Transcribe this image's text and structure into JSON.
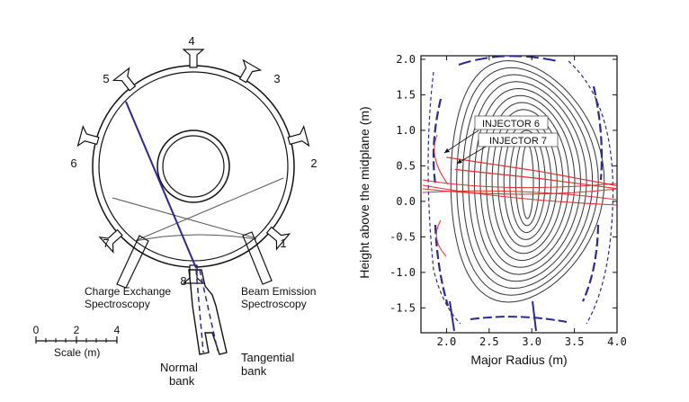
{
  "torus": {
    "ports": [
      "1",
      "2",
      "3",
      "4",
      "5",
      "6",
      "7",
      "8"
    ],
    "labels": {
      "cx_line1": "Charge Exchange",
      "cx_line2": "Spectroscopy",
      "be_line1": "Beam Emission",
      "be_line2": "Spectroscopy",
      "normal_line1": "Normal",
      "normal_line2": "bank",
      "tangential_line1": "Tangential",
      "tangential_line2": "bank"
    },
    "scale": {
      "ticks": [
        "0",
        "2",
        "4"
      ],
      "label": "Scale (m)"
    }
  },
  "plot": {
    "xlabel": "Major Radius (m)",
    "ylabel": "Height above the midplane (m)",
    "xticks": [
      "2.0",
      "2.5",
      "3.0",
      "3.5",
      "4.0"
    ],
    "yticks": [
      "2.0",
      "1.5",
      "1.0",
      "0.5",
      "0.0",
      "-0.5",
      "-1.0",
      "-1.5"
    ],
    "annotations": [
      "INJECTOR 6",
      "INJECTOR 7"
    ]
  },
  "chart_data": {
    "type": "line",
    "title": "",
    "xlabel": "Major Radius (m)",
    "ylabel": "Height above the midplane (m)",
    "xlim": [
      1.7,
      4.0
    ],
    "ylim": [
      -1.85,
      2.05
    ],
    "x_ticks": [
      2.0,
      2.5,
      3.0,
      3.5,
      4.0
    ],
    "y_ticks": [
      2.0,
      1.5,
      1.0,
      0.5,
      0.0,
      -0.5,
      -1.0,
      -1.5
    ],
    "flux_surfaces": {
      "center": [
        2.95,
        0.28
      ],
      "count": 13,
      "outer_semi_axes": [
        0.9,
        1.7
      ]
    },
    "beam_series": [
      {
        "name": "INJECTOR 6",
        "x": [
          2.0,
          3.1,
          4.0
        ],
        "y": [
          0.62,
          0.42,
          0.22
        ]
      },
      {
        "name": "INJECTOR 7",
        "x": [
          2.1,
          3.1,
          4.0
        ],
        "y": [
          0.45,
          0.32,
          0.18
        ]
      }
    ],
    "colors": {
      "contours": "#333333",
      "beams": "#e03030",
      "wall": "#2a2a90"
    }
  }
}
